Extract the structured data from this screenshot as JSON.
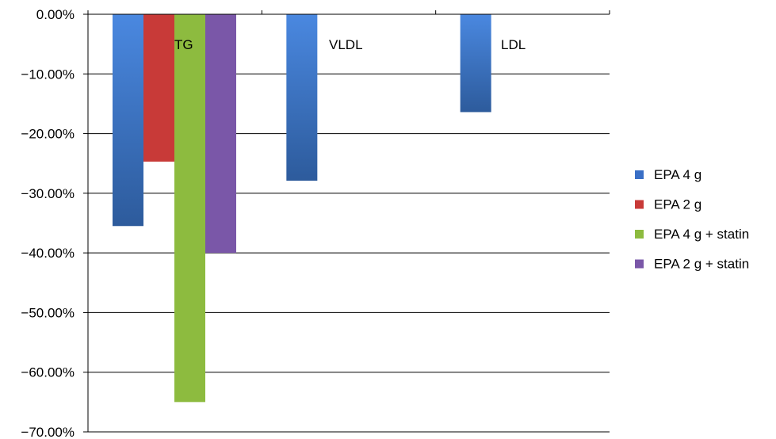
{
  "chart_data": {
    "type": "bar",
    "title": "",
    "xlabel": "",
    "ylabel": "",
    "ylim": [
      -0.7,
      0
    ],
    "yticks": [
      0,
      -0.1,
      -0.2,
      -0.3,
      -0.4,
      -0.5,
      -0.6,
      -0.7
    ],
    "ytick_labels": [
      "0.00%",
      "−10.00%",
      "−20.00%",
      "−30.00%",
      "−40.00%",
      "−50.00%",
      "−60.00%",
      "−70.00%"
    ],
    "categories": [
      "TG",
      "VLDL",
      "LDL"
    ],
    "series": [
      {
        "name": "EPA 4 g",
        "values": [
          -0.355,
          -0.279,
          -0.164
        ],
        "color": "#3a6fc6"
      },
      {
        "name": "EPA 2 g",
        "values": [
          -0.247,
          null,
          null
        ],
        "color": "#c83a38"
      },
      {
        "name": "EPA 4 g + statin",
        "values": [
          -0.65,
          null,
          null
        ],
        "color": "#8dbb3f"
      },
      {
        "name": "EPA 2 g + statin",
        "values": [
          -0.4,
          null,
          null
        ],
        "color": "#7a57a8"
      }
    ],
    "grid": true,
    "legend_position": "right"
  }
}
